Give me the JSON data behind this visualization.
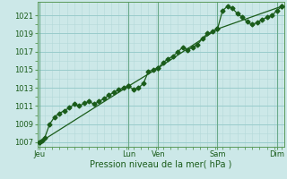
{
  "title": "",
  "xlabel": "Pression niveau de la mer( hPa )",
  "bg_color": "#cce8e8",
  "grid_color_major": "#99cccc",
  "grid_color_minor": "#b3d9d9",
  "line_color": "#1a5c1a",
  "ylim": [
    1006.5,
    1022.5
  ],
  "xlim": [
    0,
    100
  ],
  "yticks": [
    1007,
    1009,
    1011,
    1013,
    1015,
    1017,
    1019,
    1021
  ],
  "xtick_positions": [
    1,
    37,
    49,
    73,
    97
  ],
  "xtick_labels": [
    "Jeu",
    "Lun",
    "Ven",
    "Sam",
    "Dim"
  ],
  "vline_positions": [
    1,
    37,
    49,
    73,
    97
  ],
  "series1_x": [
    1,
    2,
    3,
    5,
    7,
    9,
    11,
    13,
    15,
    17,
    19,
    21,
    23,
    25,
    27,
    29,
    31,
    33,
    35,
    37,
    39,
    41,
    43,
    45,
    47,
    49,
    51,
    53,
    55,
    57,
    59,
    61,
    63,
    65,
    67,
    69,
    71,
    73,
    75,
    77,
    79,
    81,
    83,
    85,
    87,
    89,
    91,
    93,
    95,
    97,
    99
  ],
  "series1_y": [
    1007.0,
    1007.2,
    1007.5,
    1009.0,
    1009.8,
    1010.2,
    1010.5,
    1010.8,
    1011.2,
    1011.0,
    1011.3,
    1011.5,
    1011.2,
    1011.5,
    1011.8,
    1012.2,
    1012.5,
    1012.8,
    1013.0,
    1013.2,
    1012.8,
    1013.0,
    1013.5,
    1014.8,
    1015.0,
    1015.2,
    1015.8,
    1016.2,
    1016.5,
    1017.0,
    1017.5,
    1017.2,
    1017.5,
    1017.8,
    1018.5,
    1019.0,
    1019.2,
    1019.5,
    1021.5,
    1022.0,
    1021.8,
    1021.2,
    1020.8,
    1020.3,
    1020.0,
    1020.2,
    1020.5,
    1020.8,
    1021.0,
    1021.5,
    1022.0
  ],
  "series2_x": [
    1,
    37,
    49,
    73,
    99
  ],
  "series2_y": [
    1007.0,
    1013.2,
    1015.2,
    1019.5,
    1022.0
  ],
  "marker": "D",
  "marker_size": 2.5,
  "linewidth1": 0.9,
  "linewidth2": 0.9,
  "tick_labelsize": 6,
  "xlabel_fontsize": 7
}
